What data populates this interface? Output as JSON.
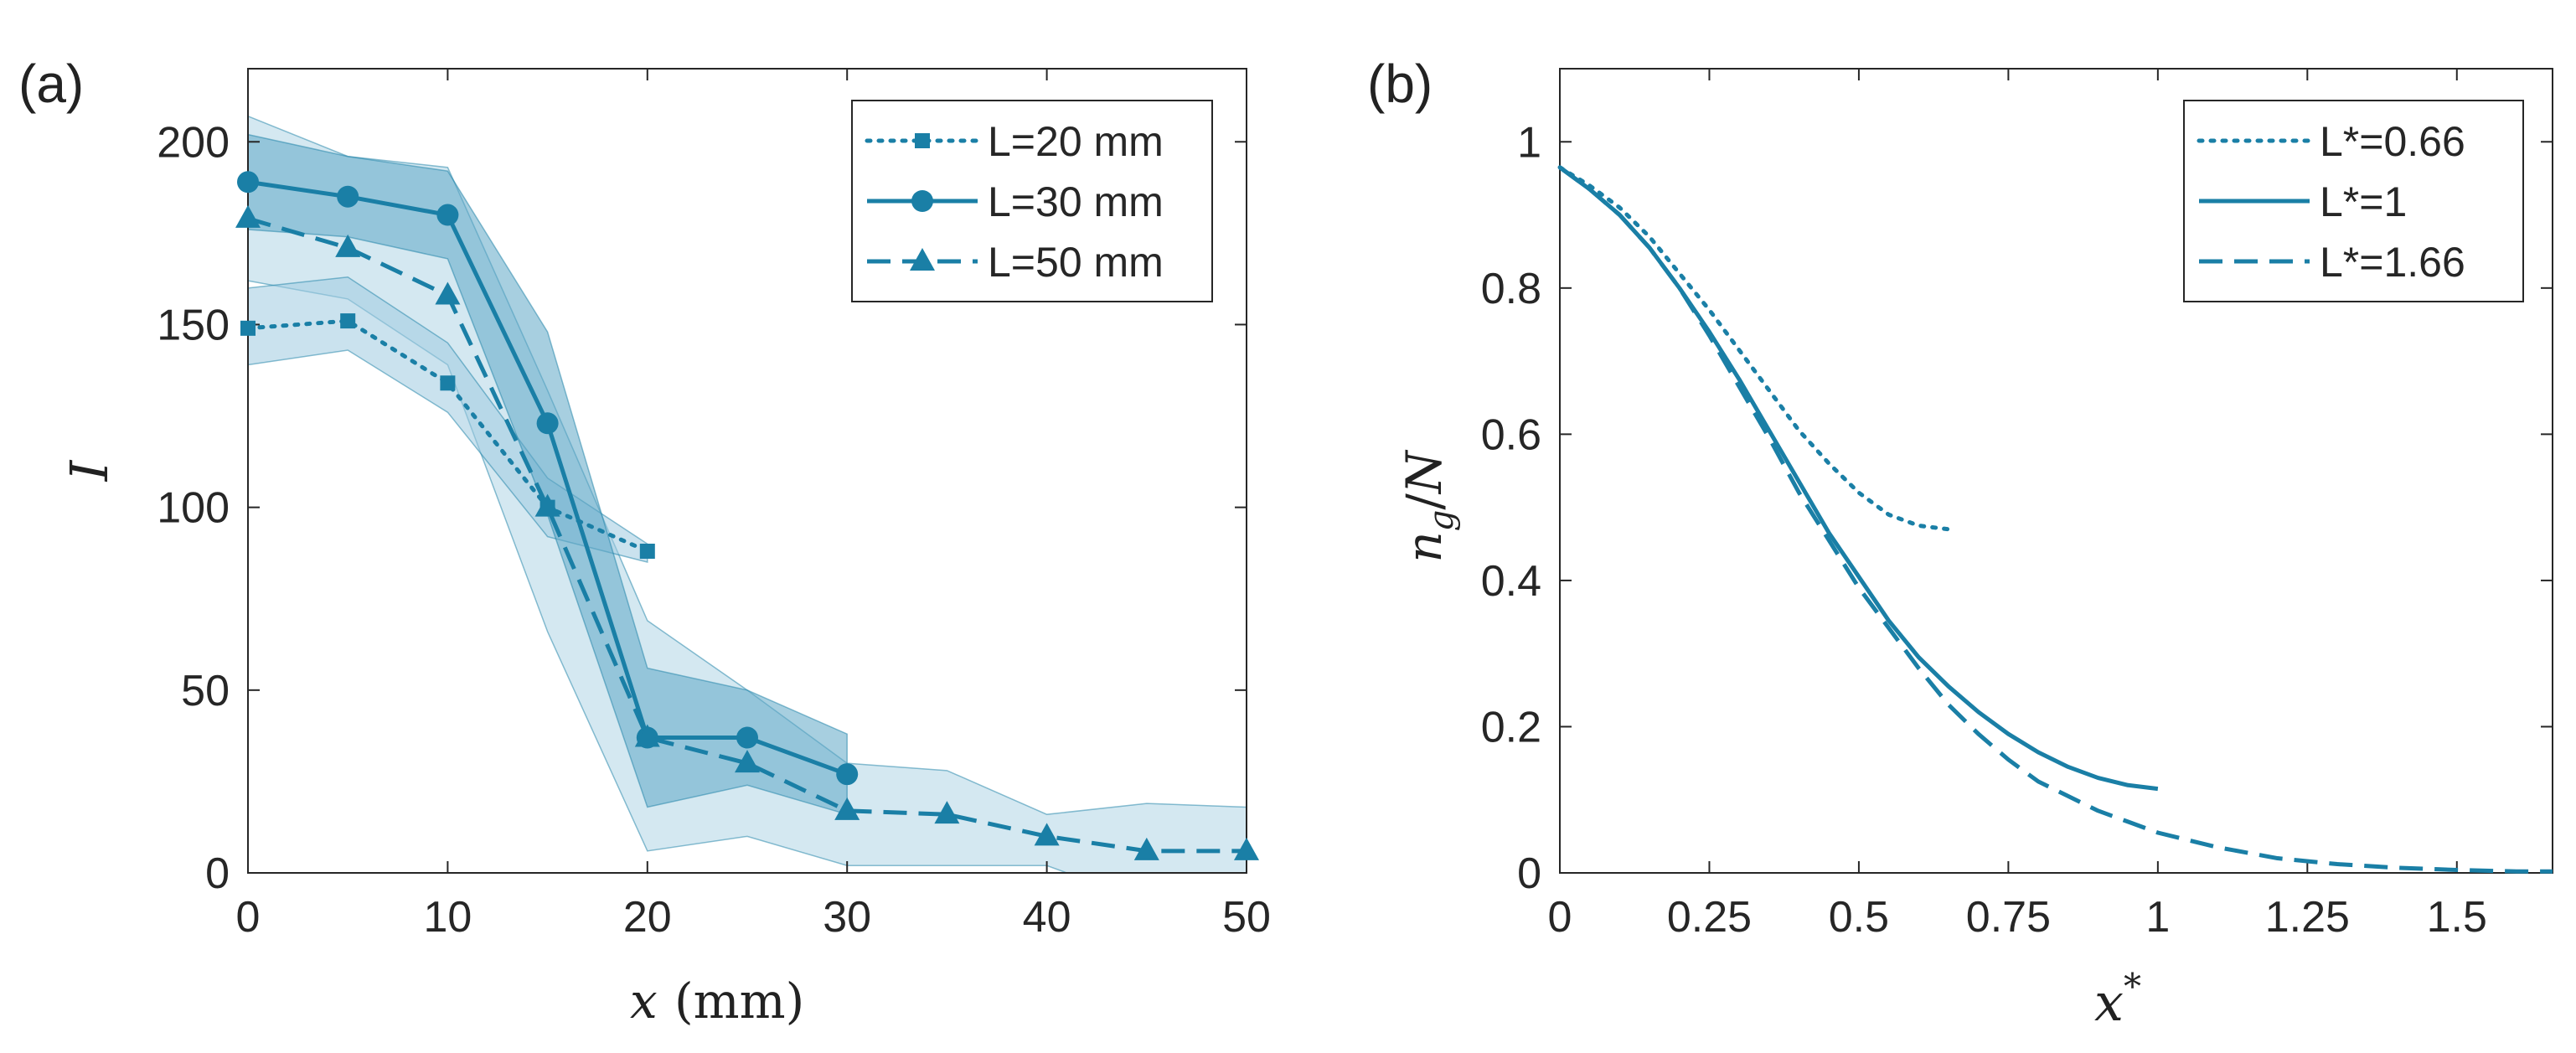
{
  "panel_a": {
    "label": "(a)",
    "xlabel_var": "x",
    "xlabel_unit": "(mm)",
    "ylabel": "I"
  },
  "panel_b": {
    "label": "(b)",
    "ylabel": "n_g/N",
    "xlabel": "x*"
  },
  "colors": {
    "series": "#1a7fa6",
    "band_light": "#cfe6f0",
    "band_mid": "#9fcbe0",
    "band_dark": "#5ea7c7"
  },
  "chart_data": [
    {
      "type": "line",
      "panel": "(a)",
      "xlim": [
        0,
        50
      ],
      "ylim": [
        0,
        220
      ],
      "xticks": [
        "0",
        "10",
        "20",
        "30",
        "40",
        "50"
      ],
      "yticks": [
        "0",
        "50",
        "100",
        "150",
        "200"
      ],
      "xlabel": "x (mm)",
      "ylabel": "I",
      "legend_position": "top-right",
      "series": [
        {
          "name": "L=20 mm",
          "style": "dotted",
          "marker": "square",
          "x": [
            0,
            5,
            10,
            15,
            20
          ],
          "y": [
            149,
            151,
            134,
            100,
            88
          ],
          "band_upper": [
            160,
            163,
            145,
            108,
            90
          ],
          "band_lower": [
            139,
            143,
            126,
            92,
            85
          ]
        },
        {
          "name": "L=30 mm",
          "style": "solid",
          "marker": "circle",
          "x": [
            0,
            5,
            10,
            15,
            20,
            25,
            30
          ],
          "y": [
            189,
            185,
            180,
            123,
            37,
            37,
            27
          ],
          "band_upper": [
            202,
            196,
            192,
            148,
            56,
            50,
            38
          ],
          "band_lower": [
            176,
            174,
            168,
            98,
            18,
            24,
            16
          ]
        },
        {
          "name": "L=50 mm",
          "style": "dashed",
          "marker": "triangle",
          "x": [
            0,
            5,
            10,
            15,
            20,
            25,
            30,
            35,
            40,
            45,
            50
          ],
          "y": [
            179,
            171,
            158,
            100,
            37,
            30,
            17,
            16,
            10,
            6,
            6
          ],
          "band_upper": [
            207,
            196,
            193,
            132,
            69,
            50,
            30,
            28,
            16,
            19,
            18
          ],
          "band_lower": [
            162,
            157,
            139,
            66,
            6,
            10,
            2,
            2,
            2,
            -8,
            -6
          ]
        }
      ]
    },
    {
      "type": "line",
      "panel": "(b)",
      "xlim": [
        0,
        1.66
      ],
      "ylim": [
        0,
        1.1
      ],
      "xticks": [
        "0",
        "0.25",
        "0.5",
        "0.75",
        "1",
        "1.25",
        "1.5"
      ],
      "yticks": [
        "0",
        "0.2",
        "0.4",
        "0.6",
        "0.8",
        "1"
      ],
      "xlabel": "x*",
      "ylabel": "n_g/N",
      "legend_position": "top-right",
      "series": [
        {
          "name": "L*=0.66",
          "style": "dotted",
          "x": [
            0,
            0.05,
            0.1,
            0.15,
            0.2,
            0.25,
            0.3,
            0.35,
            0.4,
            0.45,
            0.5,
            0.55,
            0.6,
            0.65
          ],
          "y": [
            0.965,
            0.94,
            0.91,
            0.87,
            0.82,
            0.77,
            0.715,
            0.66,
            0.605,
            0.56,
            0.52,
            0.49,
            0.475,
            0.47
          ]
        },
        {
          "name": "L*=1",
          "style": "solid",
          "x": [
            0,
            0.05,
            0.1,
            0.15,
            0.2,
            0.25,
            0.3,
            0.35,
            0.4,
            0.45,
            0.5,
            0.55,
            0.6,
            0.65,
            0.7,
            0.75,
            0.8,
            0.85,
            0.9,
            0.95,
            1.0
          ],
          "y": [
            0.965,
            0.935,
            0.9,
            0.855,
            0.8,
            0.74,
            0.675,
            0.605,
            0.535,
            0.465,
            0.405,
            0.345,
            0.295,
            0.255,
            0.22,
            0.19,
            0.165,
            0.145,
            0.13,
            0.12,
            0.115
          ]
        },
        {
          "name": "L*=1.66",
          "style": "dashed",
          "x": [
            0,
            0.05,
            0.1,
            0.15,
            0.2,
            0.25,
            0.3,
            0.35,
            0.4,
            0.45,
            0.5,
            0.55,
            0.6,
            0.65,
            0.7,
            0.75,
            0.8,
            0.9,
            1.0,
            1.1,
            1.2,
            1.3,
            1.4,
            1.5,
            1.6,
            1.66
          ],
          "y": [
            0.965,
            0.935,
            0.9,
            0.855,
            0.8,
            0.735,
            0.665,
            0.595,
            0.52,
            0.455,
            0.39,
            0.335,
            0.28,
            0.23,
            0.19,
            0.155,
            0.125,
            0.085,
            0.055,
            0.035,
            0.02,
            0.012,
            0.007,
            0.004,
            0.002,
            0.002
          ]
        }
      ]
    }
  ]
}
